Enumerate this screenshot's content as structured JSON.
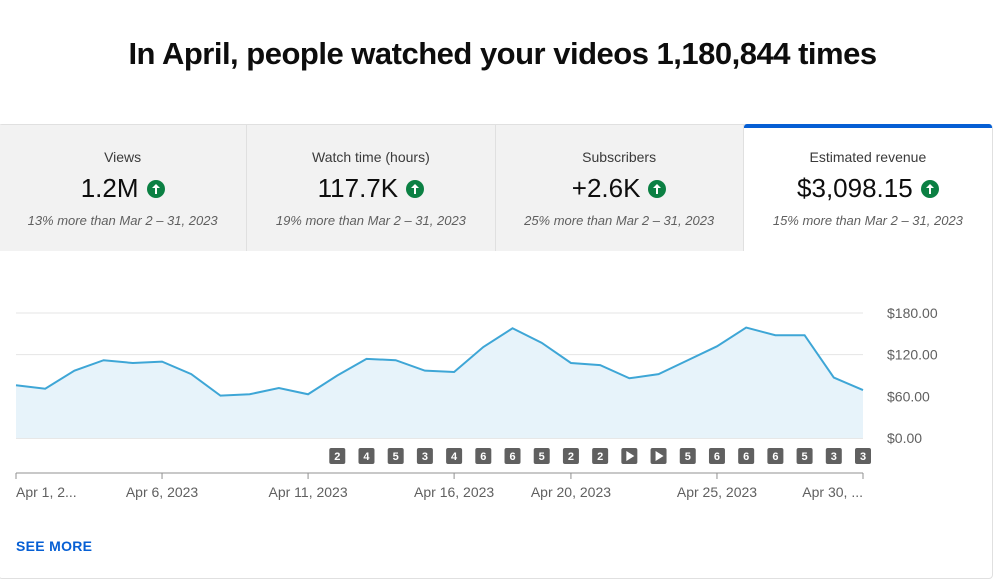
{
  "headline": "In April, people watched your videos 1,180,844 times",
  "tabs": [
    {
      "label": "Views",
      "value": "1.2M",
      "compare": "13% more than Mar 2 – 31, 2023"
    },
    {
      "label": "Watch time (hours)",
      "value": "117.7K",
      "compare": "19% more than Mar 2 – 31, 2023"
    },
    {
      "label": "Subscribers",
      "value": "+2.6K",
      "compare": "25% more than Mar 2 – 31, 2023"
    },
    {
      "label": "Estimated revenue",
      "value": "$3,098.15",
      "compare": "15% more than Mar 2 – 31, 2023",
      "active": true
    }
  ],
  "see_more": "SEE MORE",
  "colors": {
    "accent": "#065fd4",
    "line": "#3ea6d6",
    "fill": "#e7f3fa",
    "up": "#0b8043"
  },
  "chart_data": {
    "type": "area",
    "series": [
      {
        "values": [
          76,
          71,
          97,
          112,
          108,
          110,
          92,
          61,
          63,
          72,
          63,
          90,
          114,
          112,
          97,
          95,
          131,
          158,
          137,
          108,
          105,
          86,
          92,
          112,
          132,
          159,
          148,
          148,
          87,
          69
        ]
      }
    ],
    "y_ticks": [
      "$180.00",
      "$120.00",
      "$60.00",
      "$0.00"
    ],
    "ylim": [
      0,
      180
    ],
    "x_tick_labels": [
      {
        "label": "Apr 1, 2...",
        "day": 1
      },
      {
        "label": "Apr 6, 2023",
        "day": 6
      },
      {
        "label": "Apr 11, 2023",
        "day": 11
      },
      {
        "label": "Apr 16, 2023",
        "day": 16
      },
      {
        "label": "Apr 20, 2023",
        "day": 20
      },
      {
        "label": "Apr 25, 2023",
        "day": 25
      },
      {
        "label": "Apr 30, ...",
        "day": 30
      }
    ],
    "markers": [
      {
        "day": 12,
        "text": "2"
      },
      {
        "day": 13,
        "text": "4"
      },
      {
        "day": 14,
        "text": "5"
      },
      {
        "day": 15,
        "text": "3"
      },
      {
        "day": 16,
        "text": "4"
      },
      {
        "day": 17,
        "text": "6"
      },
      {
        "day": 18,
        "text": "6"
      },
      {
        "day": 19,
        "text": "5"
      },
      {
        "day": 20,
        "text": "2"
      },
      {
        "day": 21,
        "text": "2"
      },
      {
        "day": 22,
        "text": "play"
      },
      {
        "day": 23,
        "text": "play"
      },
      {
        "day": 24,
        "text": "5"
      },
      {
        "day": 25,
        "text": "6"
      },
      {
        "day": 26,
        "text": "6"
      },
      {
        "day": 27,
        "text": "6"
      },
      {
        "day": 28,
        "text": "5"
      },
      {
        "day": 29,
        "text": "3"
      },
      {
        "day": 30,
        "text": "3"
      }
    ],
    "grid": true
  }
}
